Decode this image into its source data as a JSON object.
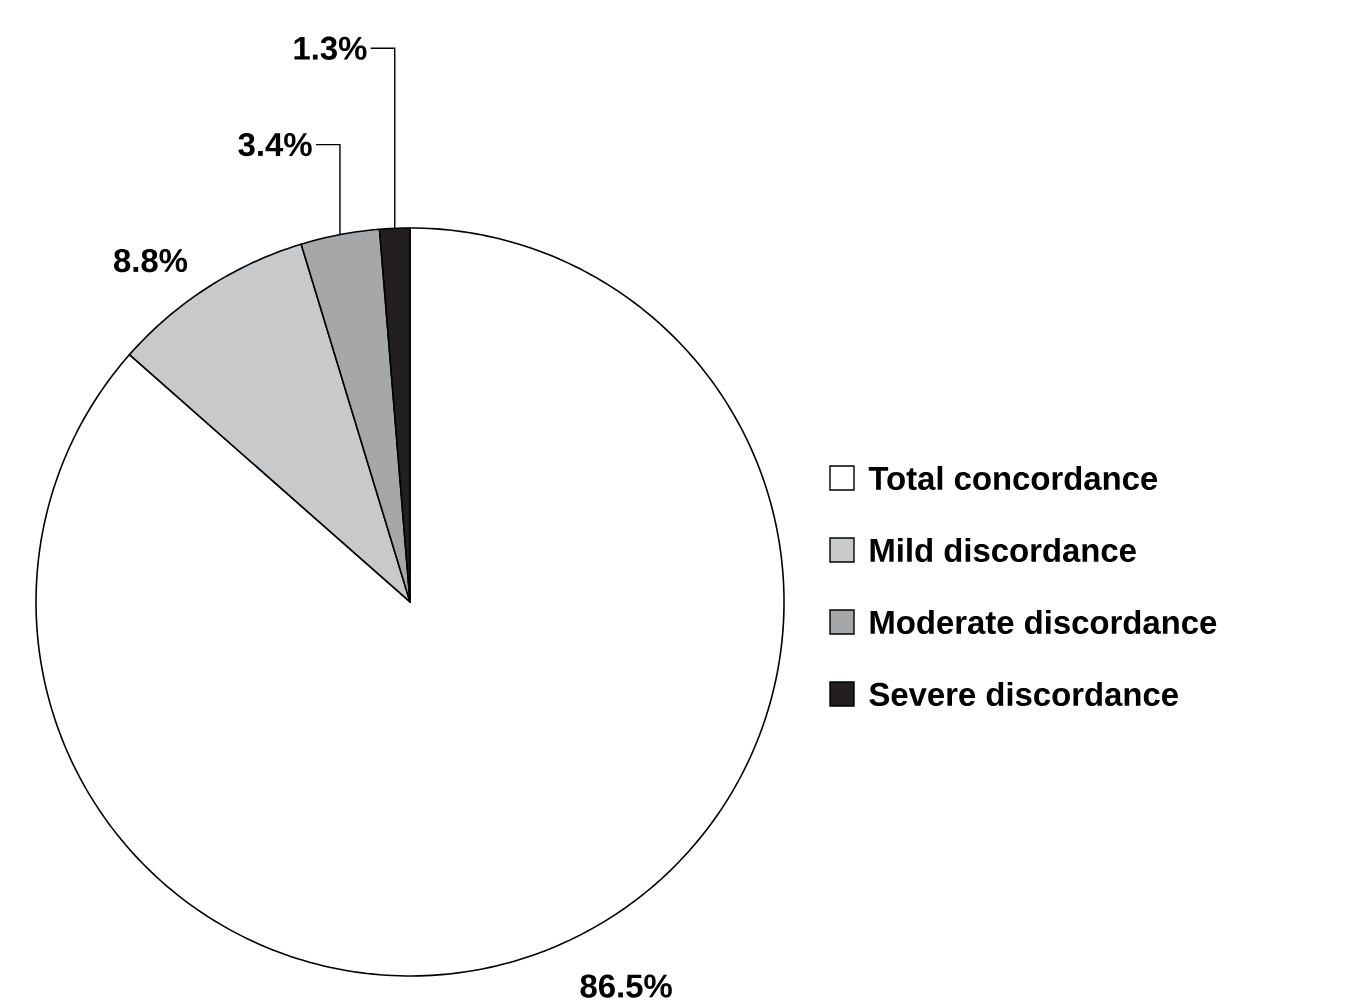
{
  "chart_data": {
    "type": "pie",
    "categories": [
      "Total concordance",
      "Mild discordance",
      "Moderate discordance",
      "Severe discordance"
    ],
    "values": [
      86.5,
      8.8,
      3.4,
      1.3
    ],
    "value_labels": [
      "86.5%",
      "8.8%",
      "3.4%",
      "1.3%"
    ],
    "colors": [
      "#ffffff",
      "#c8c9cb",
      "#a6a7a9",
      "#231f20"
    ],
    "legend": "right"
  }
}
